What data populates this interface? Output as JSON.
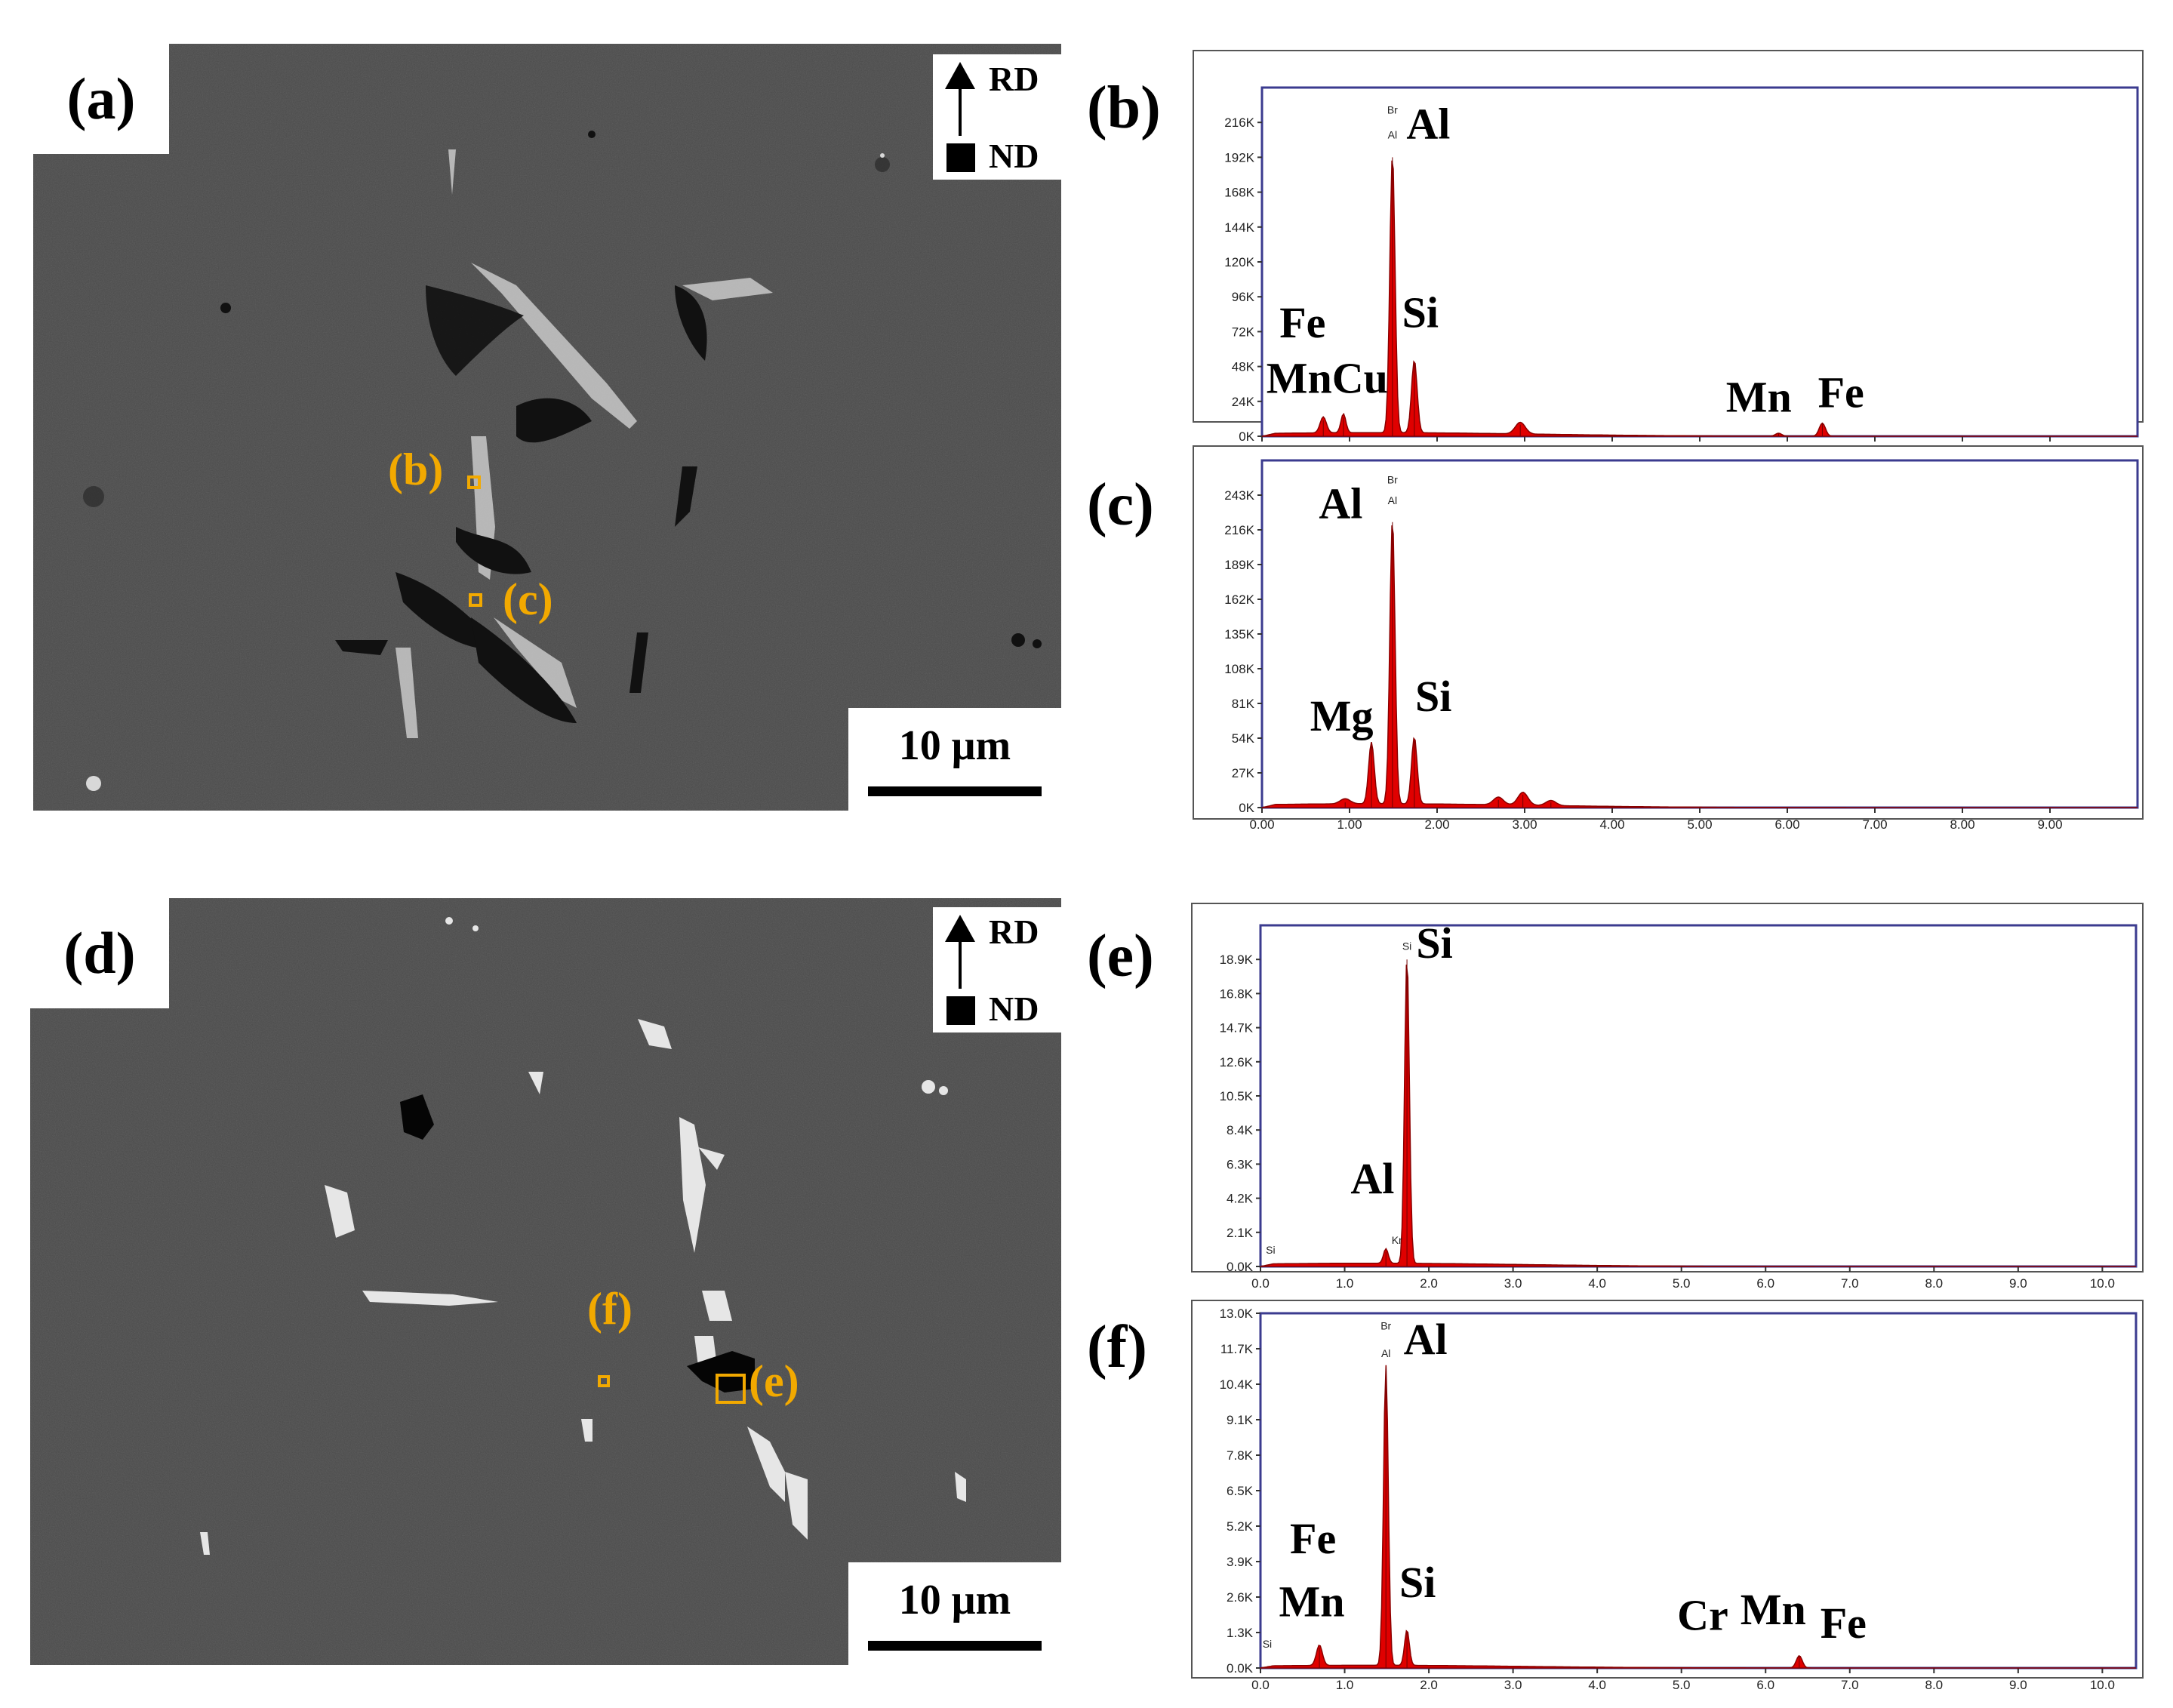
{
  "colors": {
    "roi": "#f2a900",
    "peak": "#e00000",
    "sem_background": "#4a4a4a"
  },
  "panels": {
    "a": {
      "label": "(a)",
      "axis_top": "RD",
      "axis_bottom": "ND",
      "scale_text": "10 μm",
      "roi_labels": {
        "b": "(b)",
        "c": "(c)"
      },
      "icons": [
        "arrow-up-icon",
        "square-icon"
      ]
    },
    "d": {
      "label": "(d)",
      "axis_top": "RD",
      "axis_bottom": "ND",
      "scale_text": "10 μm",
      "roi_labels": {
        "f": "(f)",
        "e": "(e)"
      },
      "icons": [
        "arrow-up-icon",
        "square-icon"
      ]
    }
  },
  "chart_data": [
    {
      "id": "b",
      "panel_label": "(b)",
      "type": "area",
      "x_range": [
        0,
        10
      ],
      "x_ticks": [
        "0.00",
        "1.00",
        "2.00",
        "3.00",
        "4.00",
        "5.00",
        "6.00",
        "7.00",
        "8.00",
        "9.00"
      ],
      "y_range": [
        0,
        240
      ],
      "y_ticks": [
        "0K",
        "24K",
        "48K",
        "72K",
        "96K",
        "120K",
        "144K",
        "168K",
        "192K",
        "216K"
      ],
      "peaks": [
        {
          "x": 0.7,
          "y": 11,
          "w": 0.05
        },
        {
          "x": 0.93,
          "y": 13,
          "w": 0.04
        },
        {
          "x": 1.49,
          "y": 192,
          "w": 0.042
        },
        {
          "x": 1.74,
          "y": 50,
          "w": 0.045
        },
        {
          "x": 2.95,
          "y": 8,
          "w": 0.08
        },
        {
          "x": 5.9,
          "y": 2,
          "w": 0.05
        },
        {
          "x": 6.4,
          "y": 9,
          "w": 0.05
        }
      ],
      "background": 2.5,
      "tiny_labels": [
        {
          "text": "Br",
          "x": 1.49,
          "y": 222
        },
        {
          "text": "Al",
          "x": 1.49,
          "y": 205
        }
      ],
      "labels": [
        {
          "text": "Al",
          "x": 1.65,
          "y": 205
        },
        {
          "text": "Si",
          "x": 1.6,
          "y": 75
        },
        {
          "text": "Fe",
          "x": 0.2,
          "y": 68
        },
        {
          "text": "MnCu",
          "x": 0.05,
          "y": 30
        },
        {
          "text": "Mn",
          "x": 5.3,
          "y": 17
        },
        {
          "text": "Fe",
          "x": 6.35,
          "y": 20
        }
      ]
    },
    {
      "id": "c",
      "panel_label": "(c)",
      "type": "area",
      "x_range": [
        0,
        10
      ],
      "x_ticks": [
        "0.00",
        "1.00",
        "2.00",
        "3.00",
        "4.00",
        "5.00",
        "6.00",
        "7.00",
        "8.00",
        "9.00"
      ],
      "y_range": [
        0,
        270
      ],
      "y_ticks": [
        "0K",
        "27K",
        "54K",
        "81K",
        "108K",
        "135K",
        "162K",
        "189K",
        "216K",
        "243K"
      ],
      "peaks": [
        {
          "x": 0.95,
          "y": 4,
          "w": 0.08
        },
        {
          "x": 1.25,
          "y": 48,
          "w": 0.045
        },
        {
          "x": 1.49,
          "y": 222,
          "w": 0.042
        },
        {
          "x": 1.74,
          "y": 52,
          "w": 0.045
        },
        {
          "x": 2.7,
          "y": 6,
          "w": 0.08
        },
        {
          "x": 2.98,
          "y": 10,
          "w": 0.08
        },
        {
          "x": 3.3,
          "y": 4,
          "w": 0.08
        }
      ],
      "background": 3,
      "tiny_labels": [
        {
          "text": "Br",
          "x": 1.49,
          "y": 252
        },
        {
          "text": "Al",
          "x": 1.49,
          "y": 236
        }
      ],
      "labels": [
        {
          "text": "Al",
          "x": 0.65,
          "y": 225
        },
        {
          "text": "Mg",
          "x": 0.55,
          "y": 60
        },
        {
          "text": "Si",
          "x": 1.75,
          "y": 75
        }
      ]
    },
    {
      "id": "e",
      "panel_label": "(e)",
      "type": "area",
      "x_range": [
        0,
        10.4
      ],
      "x_ticks": [
        "0.0",
        "1.0",
        "2.0",
        "3.0",
        "4.0",
        "5.0",
        "6.0",
        "7.0",
        "8.0",
        "9.0",
        "10.0"
      ],
      "y_range": [
        0,
        21
      ],
      "y_ticks": [
        "0.0K",
        "2.1K",
        "4.2K",
        "6.3K",
        "8.4K",
        "10.5K",
        "12.6K",
        "14.7K",
        "16.8K",
        "18.9K"
      ],
      "peaks": [
        {
          "x": 1.49,
          "y": 0.9,
          "w": 0.04
        },
        {
          "x": 1.74,
          "y": 18.9,
          "w": 0.04
        }
      ],
      "background": 0.2,
      "tiny_labels": [
        {
          "text": "Si",
          "x": 1.74,
          "y": 19.5
        },
        {
          "text": "Si",
          "x": 0.12,
          "y": 0.8
        },
        {
          "text": "Kr",
          "x": 1.62,
          "y": 1.4
        }
      ],
      "labels": [
        {
          "text": "Si",
          "x": 1.85,
          "y": 19.0
        },
        {
          "text": "Al",
          "x": 1.07,
          "y": 4.5
        }
      ]
    },
    {
      "id": "f",
      "panel_label": "(f)",
      "type": "area",
      "x_range": [
        0,
        10.4
      ],
      "x_ticks": [
        "0.0",
        "1.0",
        "2.0",
        "3.0",
        "4.0",
        "5.0",
        "6.0",
        "7.0",
        "8.0",
        "9.0",
        "10.0"
      ],
      "y_range": [
        0,
        13.0
      ],
      "y_ticks": [
        "0.0K",
        "1.3K",
        "2.6K",
        "3.9K",
        "5.2K",
        "6.5K",
        "7.8K",
        "9.1K",
        "10.4K",
        "11.7K",
        "13.0K"
      ],
      "peaks": [
        {
          "x": 0.7,
          "y": 0.75,
          "w": 0.05
        },
        {
          "x": 1.49,
          "y": 11.0,
          "w": 0.04
        },
        {
          "x": 1.74,
          "y": 1.3,
          "w": 0.04
        },
        {
          "x": 6.4,
          "y": 0.45,
          "w": 0.05
        }
      ],
      "background": 0.1,
      "tiny_labels": [
        {
          "text": "Br",
          "x": 1.49,
          "y": 12.4
        },
        {
          "text": "Al",
          "x": 1.49,
          "y": 11.4
        },
        {
          "text": "Si",
          "x": 0.08,
          "y": 0.75
        }
      ],
      "labels": [
        {
          "text": "Al",
          "x": 1.7,
          "y": 11.5
        },
        {
          "text": "Si",
          "x": 1.65,
          "y": 2.6
        },
        {
          "text": "Fe",
          "x": 0.35,
          "y": 4.2
        },
        {
          "text": "Mn",
          "x": 0.22,
          "y": 1.9
        },
        {
          "text": "Cr",
          "x": 4.95,
          "y": 1.4
        },
        {
          "text": "Mn",
          "x": 5.7,
          "y": 1.6
        },
        {
          "text": "Fe",
          "x": 6.65,
          "y": 1.1
        }
      ]
    }
  ]
}
